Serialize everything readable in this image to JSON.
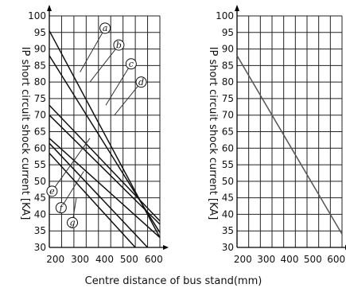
{
  "chart_data": [
    {
      "type": "line",
      "ylabel": "IP short circuit shock current [KA]",
      "xlim": [
        175,
        625
      ],
      "ylim": [
        30,
        100
      ],
      "x_ticks": [
        200,
        300,
        400,
        500,
        600
      ],
      "y_ticks": [
        30,
        35,
        40,
        45,
        50,
        55,
        60,
        65,
        70,
        75,
        80,
        85,
        90,
        95,
        100
      ],
      "x_tick_labels": [
        "200",
        "300",
        "400",
        "500",
        "600"
      ],
      "y_tick_labels": [
        "30",
        "35",
        "40",
        "45",
        "50",
        "55",
        "60",
        "65",
        "70",
        "75",
        "80",
        "85",
        "90",
        "95",
        "100"
      ],
      "grid": true,
      "series": [
        {
          "name": "a",
          "x": [
            175,
            625
          ],
          "y": [
            95.5,
            33
          ]
        },
        {
          "name": "b",
          "x": [
            175,
            625
          ],
          "y": [
            88,
            34.5
          ]
        },
        {
          "name": "c",
          "x": [
            175,
            625
          ],
          "y": [
            73,
            38
          ]
        },
        {
          "name": "d",
          "x": [
            175,
            625
          ],
          "y": [
            70,
            37
          ]
        },
        {
          "name": "e",
          "x": [
            175,
            625
          ],
          "y": [
            63,
            33
          ]
        },
        {
          "name": "f",
          "x": [
            175,
            575
          ],
          "y": [
            61.5,
            30
          ]
        },
        {
          "name": "g",
          "x": [
            175,
            525
          ],
          "y": [
            58.5,
            30
          ]
        }
      ],
      "callouts": [
        {
          "label": "a",
          "x": 402,
          "y": 96.3,
          "line_to": [
            300,
            83
          ]
        },
        {
          "label": "b",
          "x": 458,
          "y": 91.2,
          "line_to": [
            340,
            80
          ]
        },
        {
          "label": "c",
          "x": 508,
          "y": 85.5,
          "line_to": [
            405,
            73
          ]
        },
        {
          "label": "d",
          "x": 549,
          "y": 80.0,
          "line_to": [
            440,
            70
          ]
        },
        {
          "label": "e",
          "x": 186,
          "y": 47.0,
          "line_to": [
            340,
            63
          ]
        },
        {
          "label": "f",
          "x": 223,
          "y": 42.0,
          "line_to": [
            315,
            53
          ]
        },
        {
          "label": "g",
          "x": 269,
          "y": 37.5,
          "line_to": [
            285,
            45
          ]
        }
      ]
    },
    {
      "type": "line",
      "ylabel": "IP short circuit shock current [KA]",
      "xlim": [
        175,
        625
      ],
      "ylim": [
        30,
        100
      ],
      "x_ticks": [
        200,
        300,
        400,
        500,
        600
      ],
      "y_ticks": [
        30,
        35,
        40,
        45,
        50,
        55,
        60,
        65,
        70,
        75,
        80,
        85,
        90,
        95,
        100
      ],
      "x_tick_labels": [
        "200",
        "300",
        "400",
        "500",
        "600"
      ],
      "y_tick_labels": [
        "30",
        "35",
        "40",
        "45",
        "50",
        "55",
        "60",
        "65",
        "70",
        "75",
        "80",
        "85",
        "90",
        "95",
        "100"
      ],
      "grid": true,
      "series": [
        {
          "x": [
            175,
            625
          ],
          "y": [
            88,
            34
          ]
        }
      ]
    }
  ],
  "shared_xlabel": "Centre distance of bus stand(mm)",
  "colors": {
    "grid": "#222222",
    "line": "#111111",
    "curve_right": "#555555"
  }
}
